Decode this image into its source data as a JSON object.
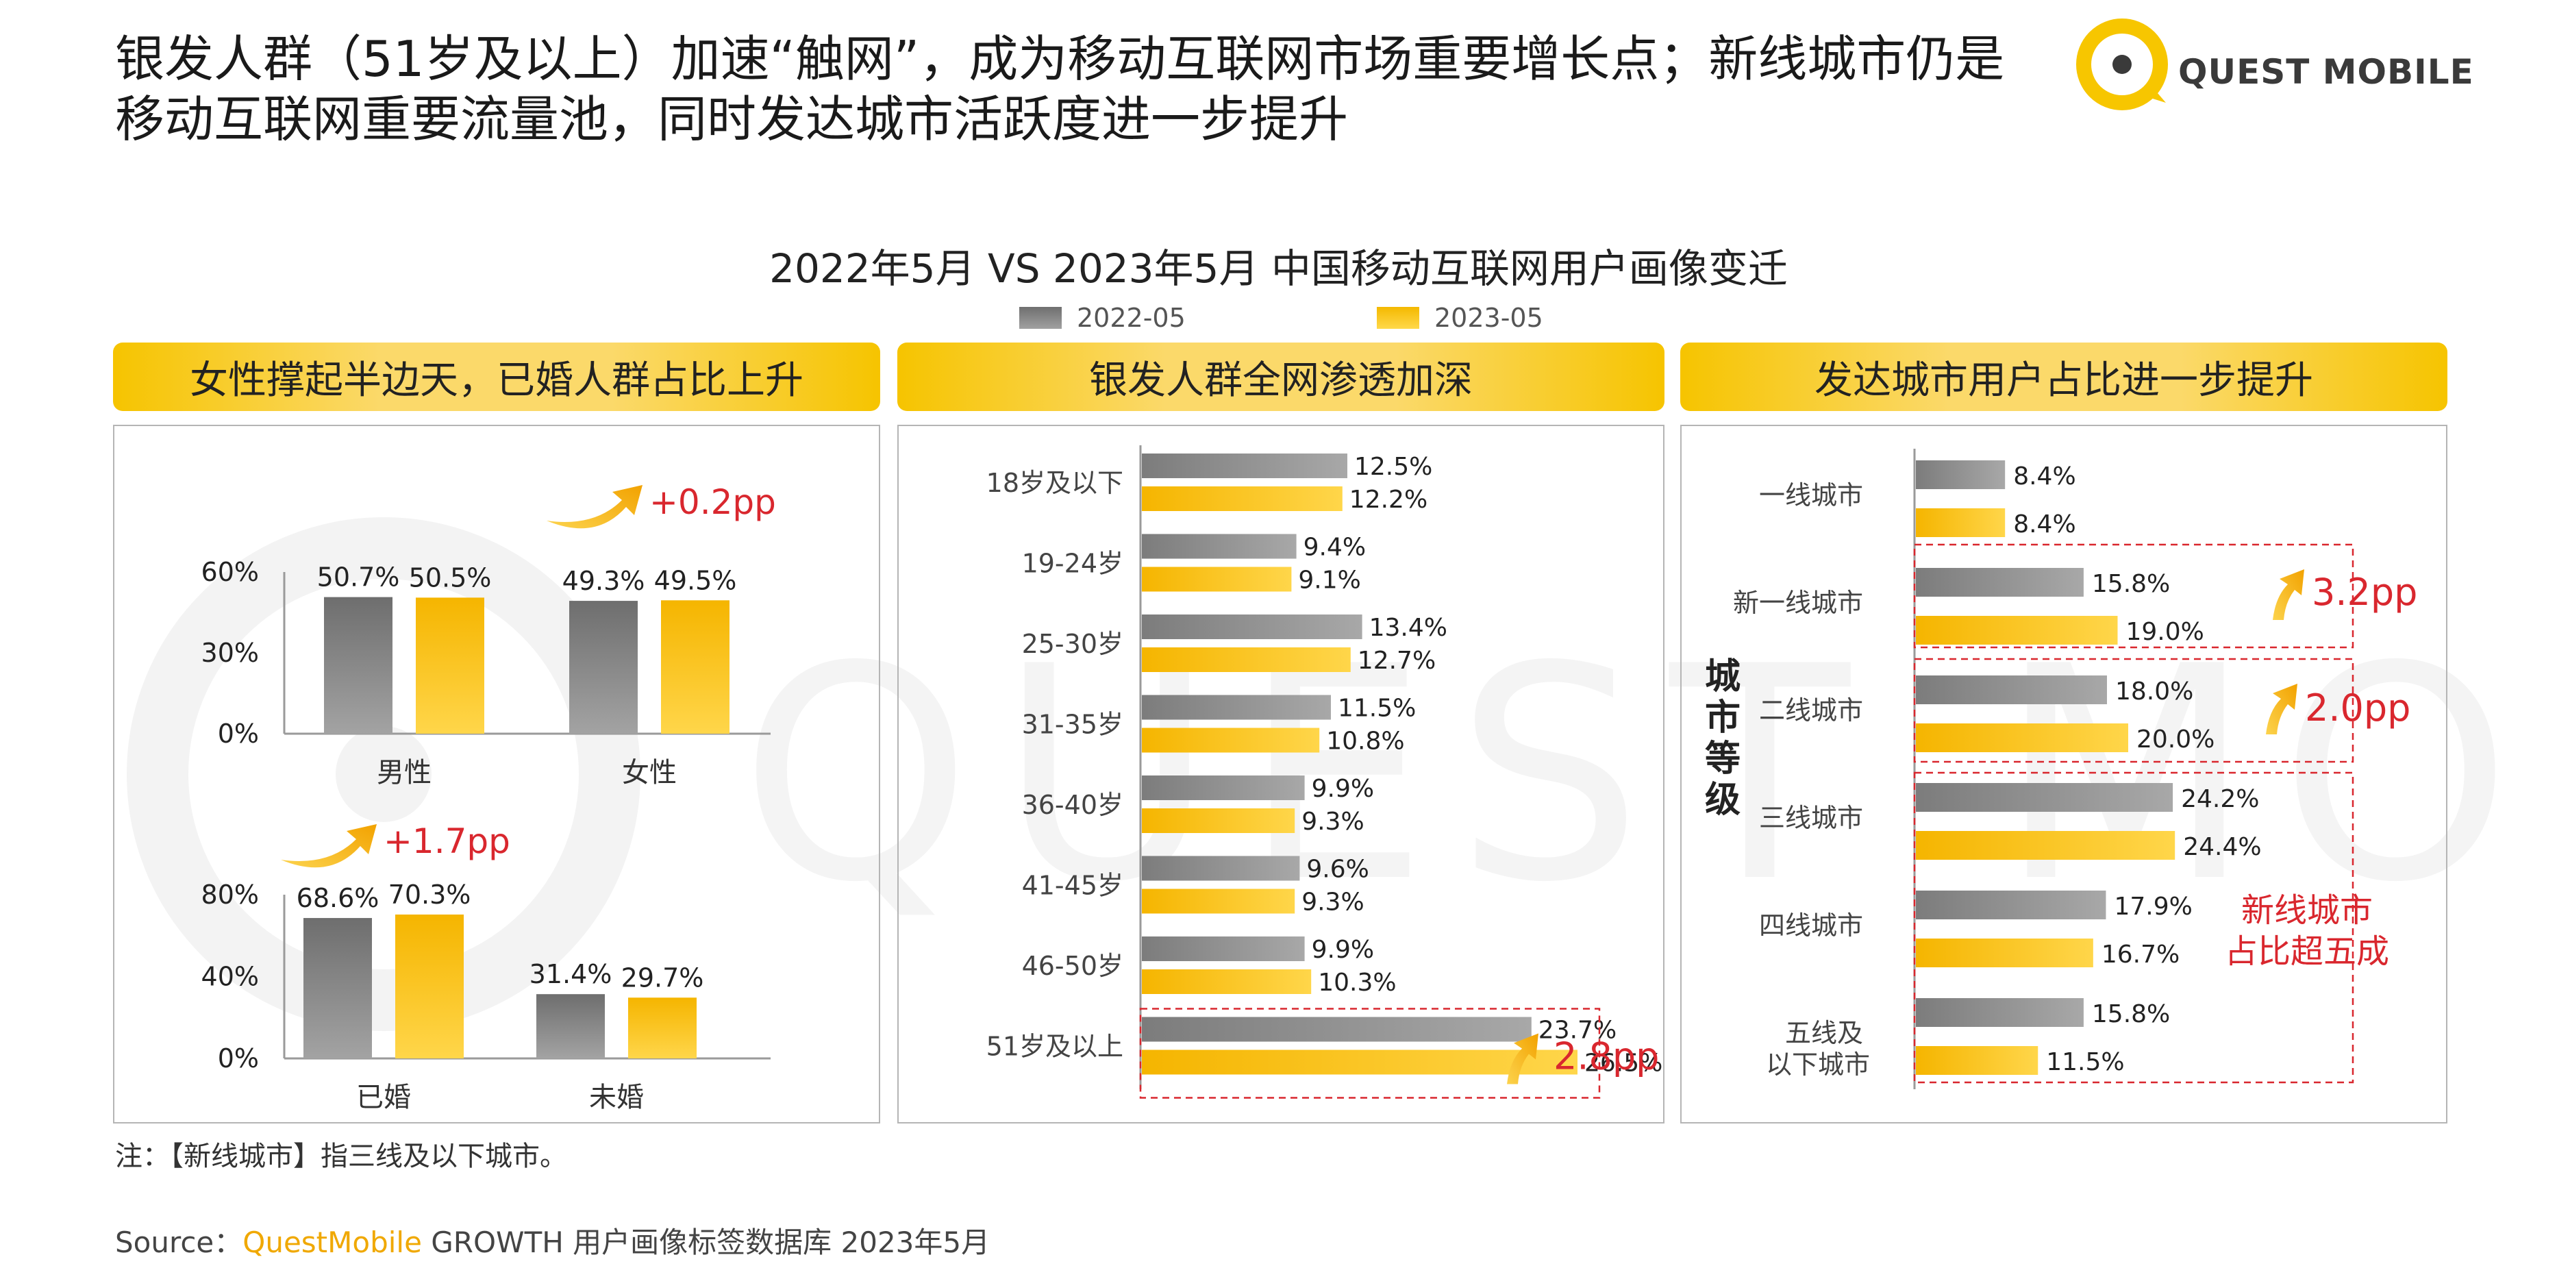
{
  "headline": "银发人群（51岁及以上）加速“触网”，成为移动互联网市场重要增长点；新线城市仍是移动互联网重要流量池，同时发达城市活跃度进一步提升",
  "logo": {
    "text": "QUEST MOBILE",
    "watermark": "QUEST MOBILE"
  },
  "title": "2022年5月 VS 2023年5月 中国移动互联网用户画像变迁",
  "colors": {
    "series_2022": "#8c8c8c",
    "series_2023": "#f7c600",
    "highlight": "#d9272e",
    "arrow": "#f2a900",
    "header_bg": "#f7c600"
  },
  "legend": [
    "2022-05",
    "2023-05"
  ],
  "panels": {
    "gender": {
      "header": "女性撑起半边天，已婚人群占比上升"
    },
    "age": {
      "header": "银发人群全网渗透加深"
    },
    "city": {
      "header": "发达城市用户占比进一步提升",
      "axis_label": "城市等级",
      "callout": "新线城市占比超五成"
    }
  },
  "note": "注：【新线城市】指三线及以下城市。",
  "source": {
    "prefix": "Source：",
    "brand": "QuestMobile",
    "rest": " GROWTH 用户画像标签数据库 2023年5月"
  },
  "chart_data": [
    {
      "type": "bar",
      "title": "",
      "categories": [
        "男性",
        "女性"
      ],
      "series": [
        {
          "name": "2022-05",
          "values": [
            50.7,
            49.3
          ]
        },
        {
          "name": "2023-05",
          "values": [
            50.5,
            49.5
          ]
        }
      ],
      "value_labels": [
        "50.7%",
        "49.3%",
        "50.5%",
        "49.5%"
      ],
      "ylim": [
        0,
        60
      ],
      "y_ticks": [
        "0%",
        "30%",
        "60%"
      ],
      "annotations": [
        {
          "text": "+0.2pp",
          "category": "女性"
        }
      ]
    },
    {
      "type": "bar",
      "title": "",
      "categories": [
        "已婚",
        "未婚"
      ],
      "series": [
        {
          "name": "2022-05",
          "values": [
            68.6,
            31.4
          ]
        },
        {
          "name": "2023-05",
          "values": [
            70.3,
            29.7
          ]
        }
      ],
      "value_labels": [
        "68.6%",
        "31.4%",
        "70.3%",
        "29.7%"
      ],
      "ylim": [
        0,
        80
      ],
      "y_ticks": [
        "0%",
        "40%",
        "80%"
      ],
      "annotations": [
        {
          "text": "+1.7pp",
          "category": "已婚"
        }
      ]
    },
    {
      "type": "bar",
      "orientation": "horizontal",
      "title": "",
      "categories": [
        "18岁及以下",
        "19-24岁",
        "25-30岁",
        "31-35岁",
        "36-40岁",
        "41-45岁",
        "46-50岁",
        "51岁及以上"
      ],
      "series": [
        {
          "name": "2022-05",
          "values": [
            12.5,
            9.4,
            13.4,
            11.5,
            9.9,
            9.6,
            9.9,
            23.7
          ]
        },
        {
          "name": "2023-05",
          "values": [
            12.2,
            9.1,
            12.7,
            10.8,
            9.3,
            9.3,
            10.3,
            26.5
          ]
        }
      ],
      "value_labels": {
        "2022-05": [
          "12.5%",
          "9.4%",
          "13.4%",
          "11.5%",
          "9.9%",
          "9.6%",
          "9.9%",
          "23.7%"
        ],
        "2023-05": [
          "12.2%",
          "9.1%",
          "12.7%",
          "10.8%",
          "9.3%",
          "9.3%",
          "10.3%",
          "26.5%"
        ]
      },
      "annotations": [
        {
          "text": "2.8pp",
          "category": "51岁及以上"
        }
      ]
    },
    {
      "type": "bar",
      "orientation": "horizontal",
      "title": "",
      "ylabel": "城市等级",
      "categories": [
        "一线城市",
        "新一线城市",
        "二线城市",
        "三线城市",
        "四线城市",
        "五线及以下城市"
      ],
      "series": [
        {
          "name": "2022-05",
          "values": [
            8.4,
            15.8,
            18.0,
            24.2,
            17.9,
            15.8
          ]
        },
        {
          "name": "2023-05",
          "values": [
            8.4,
            19.0,
            20.0,
            24.4,
            16.7,
            11.5
          ]
        }
      ],
      "value_labels": {
        "2022-05": [
          "8.4%",
          "15.8%",
          "18.0%",
          "24.2%",
          "17.9%",
          "15.8%"
        ],
        "2023-05": [
          "8.4%",
          "19.0%",
          "20.0%",
          "24.4%",
          "16.7%",
          "11.5%"
        ]
      },
      "annotations": [
        {
          "text": "3.2pp",
          "category": "新一线城市"
        },
        {
          "text": "2.0pp",
          "category": "二线城市"
        },
        {
          "text": "新线城市占比超五成",
          "categories": [
            "三线城市",
            "四线城市",
            "五线及以下城市"
          ]
        }
      ]
    }
  ]
}
